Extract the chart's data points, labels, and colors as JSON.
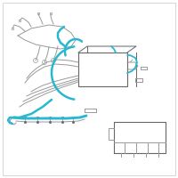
{
  "bg_color": "#ffffff",
  "border_color": "#d0d0d0",
  "gray": "#999999",
  "dark_gray": "#666666",
  "cyan": "#29b8d0",
  "lw_g": 0.7,
  "lw_c": 1.8,
  "fig_bg": "#ffffff"
}
